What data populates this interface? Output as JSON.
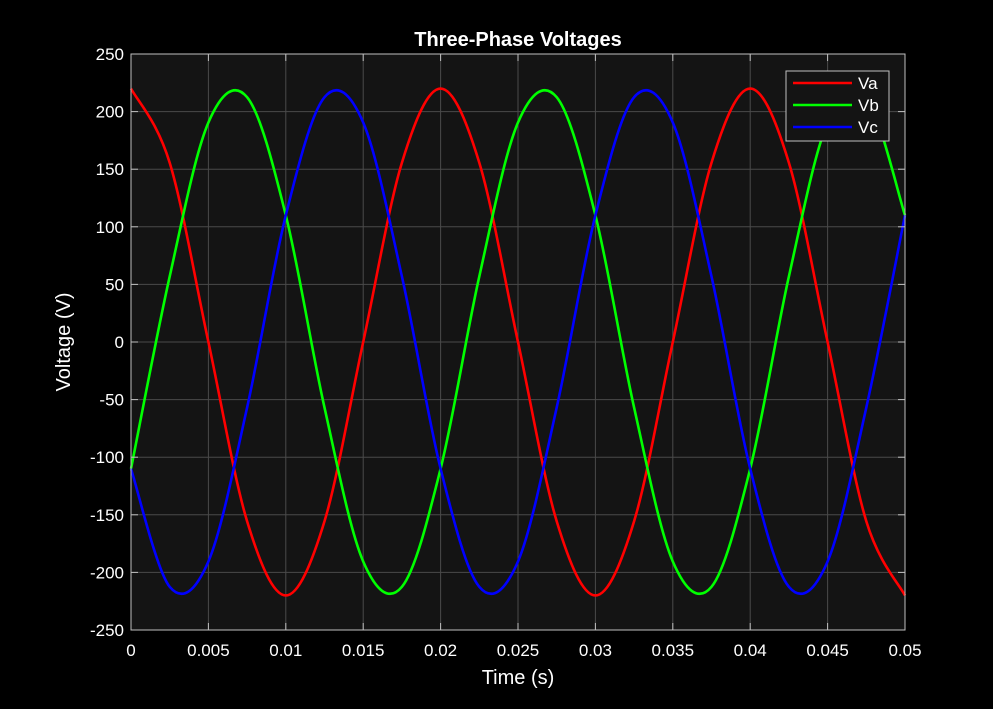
{
  "colors": {
    "figure_background": "#000000",
    "plot_background": "#141414",
    "grid": "#4a4a4a",
    "axis": "#bfbfbf",
    "text": "#ffffff",
    "legend_background": "#141414",
    "legend_border": "#bfbfbf"
  },
  "chart_data": {
    "type": "line",
    "title": "Three-Phase Voltages",
    "xlabel": "Time (s)",
    "ylabel": "Voltage (V)",
    "xlim": [
      0,
      0.05
    ],
    "ylim": [
      -250,
      250
    ],
    "grid": true,
    "legend_position": "top-right",
    "x_ticks": [
      0,
      0.005,
      0.01,
      0.015,
      0.02,
      0.025,
      0.03,
      0.035,
      0.04,
      0.045,
      0.05
    ],
    "x_tick_labels": [
      "0",
      "0.005",
      "0.01",
      "0.015",
      "0.02",
      "0.025",
      "0.03",
      "0.035",
      "0.04",
      "0.045",
      "0.05"
    ],
    "y_ticks": [
      -250,
      -200,
      -150,
      -100,
      -50,
      0,
      50,
      100,
      150,
      200,
      250
    ],
    "y_tick_labels": [
      "-250",
      "-200",
      "-150",
      "-100",
      "-50",
      "0",
      "50",
      "100",
      "150",
      "200",
      "250"
    ],
    "x": [
      0,
      0.0025,
      0.005,
      0.0075,
      0.01,
      0.0125,
      0.015,
      0.0175,
      0.02,
      0.0225,
      0.025,
      0.0275,
      0.03,
      0.0325,
      0.035,
      0.0375,
      0.04,
      0.0425,
      0.045,
      0.0475,
      0.05
    ],
    "series": [
      {
        "name": "Va",
        "color": "#ff0000",
        "values": [
          220,
          155.6,
          0,
          -155.6,
          -220,
          -155.6,
          0,
          155.6,
          220,
          155.6,
          0,
          -155.6,
          -220,
          -155.6,
          0,
          155.6,
          220,
          155.6,
          0,
          -155.6,
          -220
        ]
      },
      {
        "name": "Vb",
        "color": "#00ff00",
        "values": [
          -110,
          56.9,
          190.5,
          212.5,
          110,
          -56.9,
          -190.5,
          -212.5,
          -110,
          56.9,
          190.5,
          212.5,
          110,
          -56.9,
          -190.5,
          -212.5,
          -110,
          56.9,
          190.5,
          212.5,
          110
        ]
      },
      {
        "name": "Vc",
        "color": "#0000ff",
        "values": [
          -110,
          -212.5,
          -190.5,
          -56.9,
          110,
          212.5,
          190.5,
          56.9,
          -110,
          -212.5,
          -190.5,
          -56.9,
          110,
          212.5,
          190.5,
          56.9,
          -110,
          -212.5,
          -190.5,
          -56.9,
          110
        ]
      }
    ]
  }
}
